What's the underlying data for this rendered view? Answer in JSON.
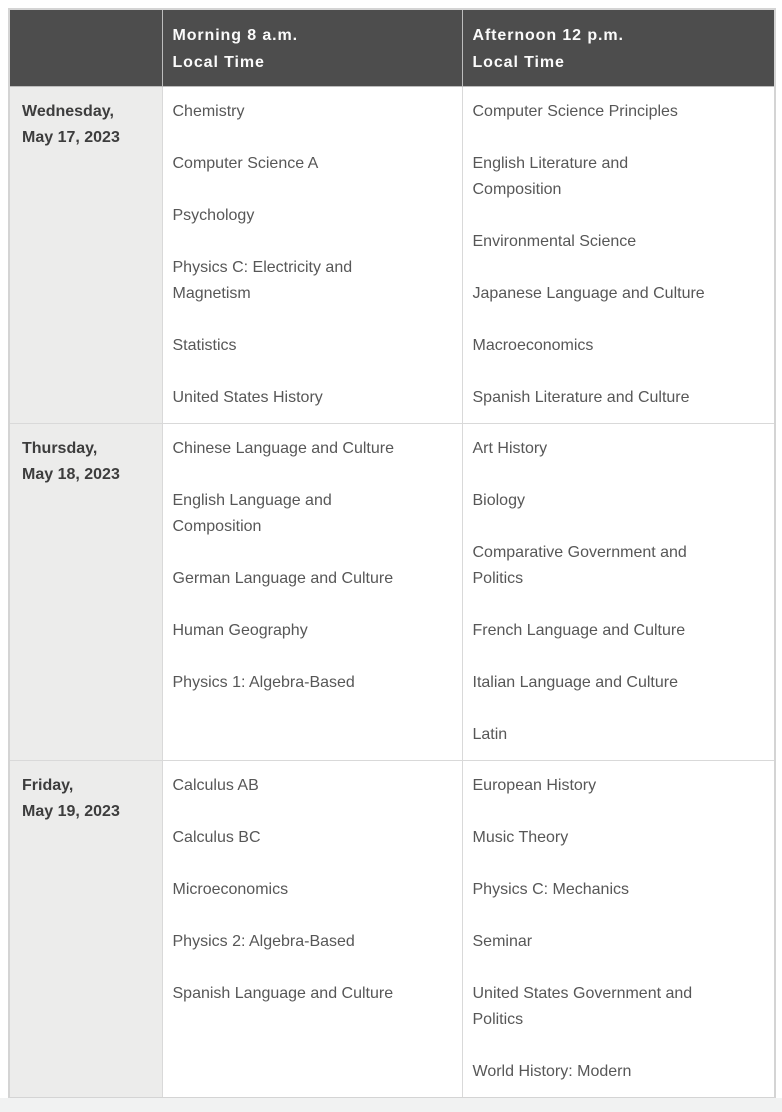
{
  "colors": {
    "header_bg": "#4d4d4d",
    "header_text": "#fbfbfb",
    "date_column_bg": "#ececeb",
    "body_text": "#575757",
    "border": "#d9d9d9",
    "bottom_strip": "#f1f2f2"
  },
  "schedule_table": {
    "header": {
      "corner": "",
      "morning": {
        "line1": "Morning 8 a.m.",
        "line2": "Local Time"
      },
      "afternoon": {
        "line1": "Afternoon 12 p.m.",
        "line2": "Local Time"
      }
    },
    "rows": [
      {
        "date": {
          "line1": "Wednesday,",
          "line2": "May 17, 2023"
        },
        "morning": [
          "Chemistry",
          "Computer Science A",
          "Psychology",
          "Physics C: Electricity and Magnetism",
          "Statistics",
          "United States History"
        ],
        "afternoon": [
          "Computer Science Principles",
          "English Literature and Composition",
          "Environmental Science",
          "Japanese Language and Culture",
          "Macroeconomics",
          "Spanish Literature and Culture"
        ]
      },
      {
        "date": {
          "line1": "Thursday,",
          "line2": "May 18, 2023"
        },
        "morning": [
          "Chinese Language and Culture",
          "English Language and Composition",
          "German Language and Culture",
          "Human Geography",
          "Physics 1: Algebra-Based"
        ],
        "afternoon": [
          "Art History",
          "Biology",
          "Comparative Government and Politics",
          "French Language and Culture",
          "Italian Language and Culture",
          "Latin"
        ]
      },
      {
        "date": {
          "line1": "Friday,",
          "line2": "May 19, 2023"
        },
        "morning": [
          "Calculus AB",
          "Calculus BC",
          "Microeconomics",
          "Physics 2: Algebra-Based",
          "Spanish Language and Culture"
        ],
        "afternoon": [
          "European History",
          "Music Theory",
          "Physics C: Mechanics",
          "Seminar",
          "United States Government and Politics",
          "World History: Modern"
        ]
      }
    ]
  }
}
